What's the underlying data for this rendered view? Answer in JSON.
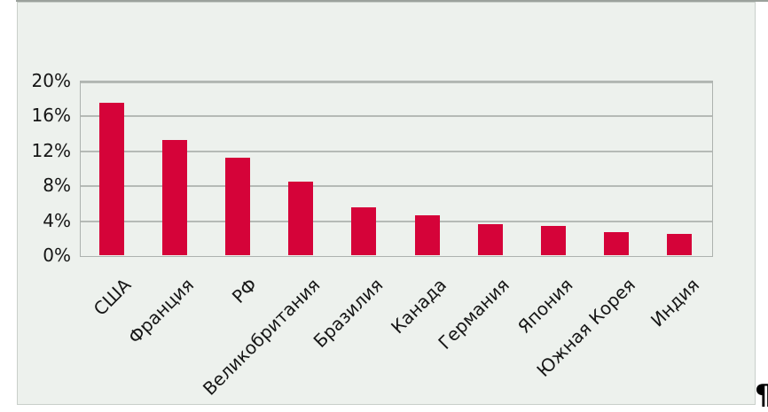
{
  "page": {
    "background": "#ffffff",
    "paragraph_mark": "¶"
  },
  "chart_frame": {
    "fill_color": "#edf1ed",
    "border_color": "#c9cfca",
    "top_line_color": "#9ba19c"
  },
  "chart_data": {
    "type": "bar",
    "title": "",
    "xlabel": "",
    "ylabel": "",
    "categories": [
      "США",
      "Франция",
      "РФ",
      "Великобритания",
      "Бразилия",
      "Канада",
      "Германия",
      "Япония",
      "Южная Корея",
      "Индия"
    ],
    "values": [
      17.5,
      13.2,
      11.2,
      8.4,
      5.5,
      4.6,
      3.6,
      3.4,
      2.6,
      2.4
    ],
    "ylim": [
      0,
      20
    ],
    "yticks": [
      0,
      4,
      8,
      12,
      16,
      20
    ],
    "ytick_labels": [
      "0%",
      "4%",
      "8%",
      "12%",
      "16%",
      "20%"
    ],
    "bar_color": "#d50339",
    "gridline_color": "#b5bab6",
    "plot_border_color": "#adb2af",
    "text_color": "#161616",
    "grid": true,
    "legend": false,
    "category_label_rotation_deg": 45,
    "data_labels": false
  }
}
